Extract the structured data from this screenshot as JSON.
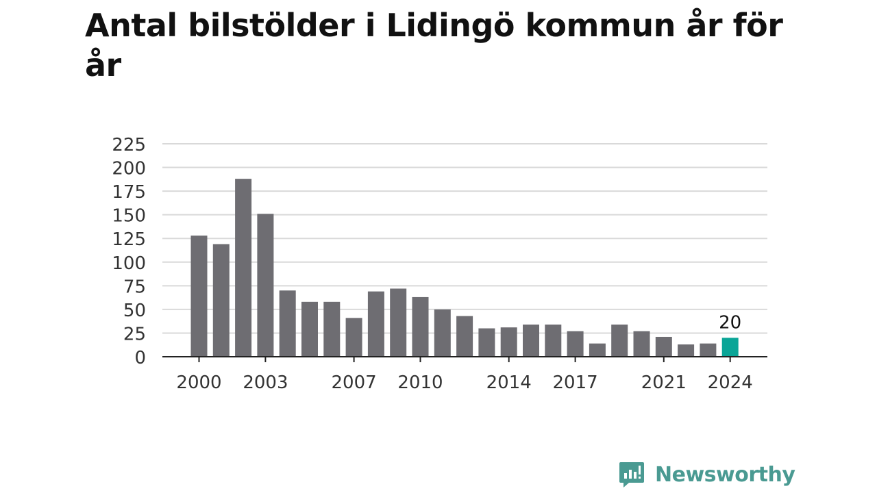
{
  "chart_data": {
    "type": "bar",
    "title": "Antal bilstölder i Lidingö kommun år för år",
    "xlabel": "",
    "ylabel": "",
    "categories": [
      "2000",
      "2001",
      "2002",
      "2003",
      "2004",
      "2005",
      "2006",
      "2007",
      "2008",
      "2009",
      "2010",
      "2011",
      "2012",
      "2013",
      "2014",
      "2015",
      "2016",
      "2017",
      "2018",
      "2019",
      "2020",
      "2021",
      "2022",
      "2023",
      "2024"
    ],
    "values": [
      128,
      119,
      188,
      151,
      70,
      58,
      58,
      41,
      69,
      72,
      63,
      50,
      43,
      30,
      31,
      34,
      34,
      27,
      14,
      34,
      27,
      21,
      13,
      14,
      20
    ],
    "x_tick_labels": [
      "2000",
      "2003",
      "2007",
      "2010",
      "2014",
      "2017",
      "2021",
      "2024"
    ],
    "y_ticks": [
      0,
      25,
      50,
      75,
      100,
      125,
      150,
      175,
      200,
      225
    ],
    "ylim": [
      0,
      225
    ],
    "grid": true,
    "legend": "none",
    "highlight": {
      "category": "2024",
      "label": "20"
    },
    "colors": {
      "bar": "#6e6d72",
      "highlight": "#0aa597",
      "grid": "#d9d9d9",
      "axis": "#222222",
      "text": "#333333"
    }
  },
  "brand": {
    "name": "Newsworthy",
    "icon": "chart-speech-bubble-icon",
    "color": "#4a9a92"
  }
}
